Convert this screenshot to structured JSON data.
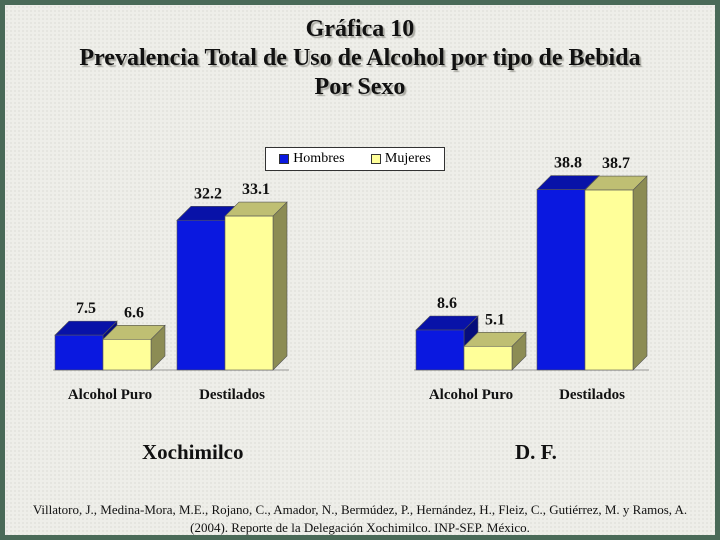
{
  "title": {
    "line1": "Gráfica 10",
    "line2": "Prevalencia Total de Uso de Alcohol por tipo de Bebida",
    "line3": "Por Sexo"
  },
  "legend": {
    "hombres": "Hombres",
    "mujeres": "Mujeres"
  },
  "colors": {
    "hombres": "#0a18e0",
    "mujeres": "#ffff99"
  },
  "chart_data": [
    {
      "type": "bar",
      "title": "",
      "group_label": "Xochimilco",
      "categories": [
        "Alcohol Puro",
        "Destilados"
      ],
      "series": [
        {
          "name": "Hombres",
          "values": [
            7.5,
            32.2
          ]
        },
        {
          "name": "Mujeres",
          "values": [
            6.6,
            33.1
          ]
        }
      ],
      "ylim": [
        0,
        40
      ],
      "grid": false,
      "legend_position": "top"
    },
    {
      "type": "bar",
      "title": "",
      "group_label": "D. F.",
      "categories": [
        "Alcohol Puro",
        "Destilados"
      ],
      "series": [
        {
          "name": "Hombres",
          "values": [
            8.6,
            38.8
          ]
        },
        {
          "name": "Mujeres",
          "values": [
            5.1,
            38.7
          ]
        }
      ],
      "ylim": [
        0,
        40
      ],
      "grid": false,
      "legend_position": "top"
    }
  ],
  "citation": "Villatoro, J., Medina-Mora, M.E., Rojano, C., Amador, N., Bermúdez, P., Hernández, H., Fleiz, C., Gutiérrez, M. y Ramos, A. (2004). Reporte de la Delegación Xochimilco. INP-SEP. México."
}
